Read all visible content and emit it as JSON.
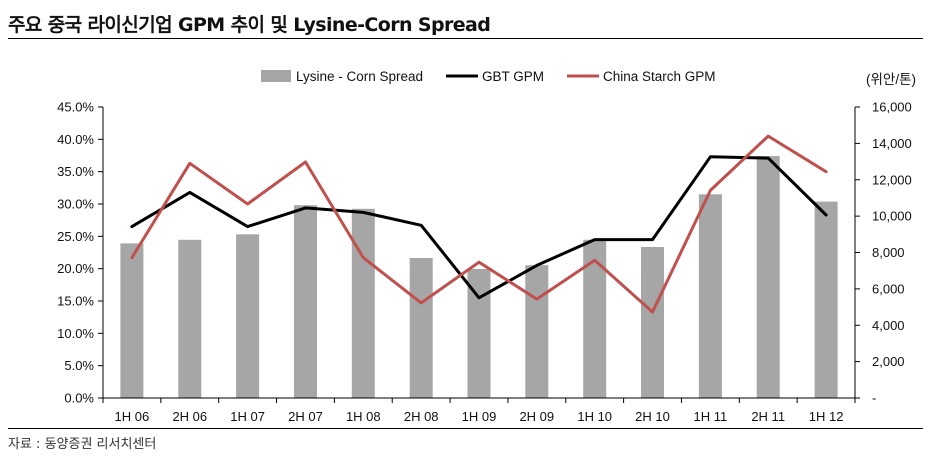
{
  "header": {
    "title": "주요 중국 라이신기업 GPM 추이 및 Lysine-Corn Spread"
  },
  "footer": {
    "source": "자료 : 동양증권 리서치센터"
  },
  "chart_data": {
    "type": "bar+line",
    "categories": [
      "1H 06",
      "2H 06",
      "1H 07",
      "2H 07",
      "1H 08",
      "2H 08",
      "1H 09",
      "2H 09",
      "1H 10",
      "2H 10",
      "1H 11",
      "2H 11",
      "1H 12"
    ],
    "series": [
      {
        "name": "Lysine - Corn Spread",
        "type": "bar",
        "axis": "right",
        "color": "#a6a6a6",
        "values": [
          8500,
          8700,
          9000,
          10600,
          10400,
          7700,
          7100,
          7300,
          8700,
          8300,
          11200,
          13300,
          10800
        ]
      },
      {
        "name": "GBT GPM",
        "type": "line",
        "axis": "left",
        "color": "#000000",
        "values": [
          26.5,
          31.8,
          26.5,
          29.4,
          28.7,
          26.7,
          15.5,
          20.5,
          24.5,
          24.5,
          37.3,
          37.1,
          28.3
        ]
      },
      {
        "name": "China Starch GPM",
        "type": "line",
        "axis": "left",
        "color": "#c0504d",
        "values": [
          21.7,
          36.3,
          30.0,
          36.5,
          21.7,
          14.7,
          21.0,
          15.3,
          21.3,
          13.3,
          32.1,
          40.5,
          35.0
        ]
      }
    ],
    "left_axis": {
      "min": 0,
      "max": 45,
      "step": 5,
      "tick_labels": [
        "0.0%",
        "5.0%",
        "10.0%",
        "15.0%",
        "20.0%",
        "25.0%",
        "30.0%",
        "35.0%",
        "40.0%",
        "45.0%"
      ]
    },
    "right_axis": {
      "min": 0,
      "max": 16000,
      "step": 2000,
      "unit_label": "(위안/톤)",
      "tick_labels": [
        "-",
        "2,000",
        "4,000",
        "6,000",
        "8,000",
        "10,000",
        "12,000",
        "14,000",
        "16,000"
      ]
    },
    "legend_position": "top-right",
    "grid": false
  }
}
